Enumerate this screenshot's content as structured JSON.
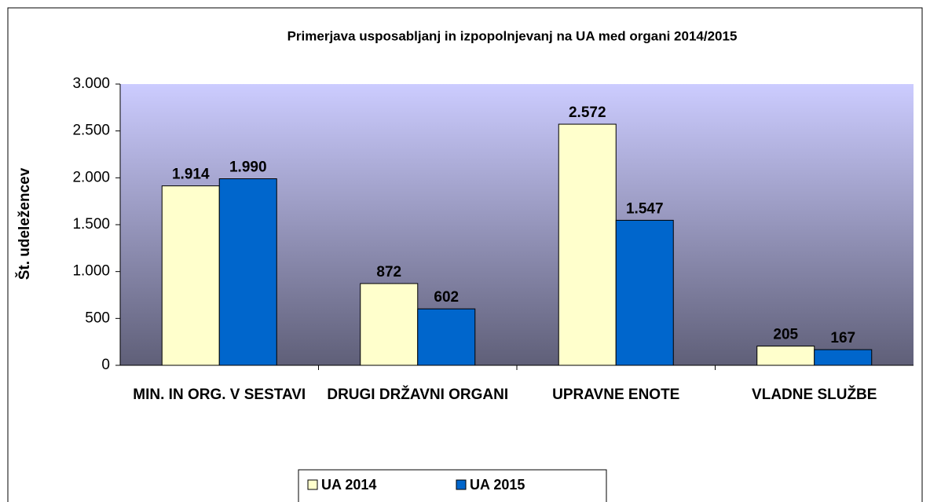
{
  "chart_data": {
    "type": "bar",
    "title": "Primerjava usposabljanj in izpopolnjevanj na UA med organi  2014/2015",
    "y_label": "Št. udeležencev",
    "categories": [
      "MIN. IN ORG. V SESTAVI",
      "DRUGI DRŽAVNI ORGANI",
      "UPRAVNE ENOTE",
      "VLADNE SLUŽBE"
    ],
    "series": [
      {
        "name": "UA 2014",
        "color": "#ffffcc",
        "values": [
          1914,
          872,
          2572,
          205
        ],
        "value_labels": [
          "1.914",
          "872",
          "2.572",
          "205"
        ]
      },
      {
        "name": "UA 2015",
        "color": "#0066cc",
        "values": [
          1990,
          602,
          1547,
          167
        ],
        "value_labels": [
          "1.990",
          "602",
          "1.547",
          "167"
        ]
      }
    ],
    "ylim": [
      0,
      3000
    ],
    "yticks": [
      0,
      500,
      {
        "value": 1000,
        "label": "1.000"
      },
      {
        "value": 1500,
        "label": "1.500"
      },
      {
        "value": 2000,
        "label": "2.000"
      },
      {
        "value": 2500,
        "label": "2.500"
      },
      {
        "value": 3000,
        "label": "3.000"
      }
    ],
    "legend": "bottom"
  }
}
